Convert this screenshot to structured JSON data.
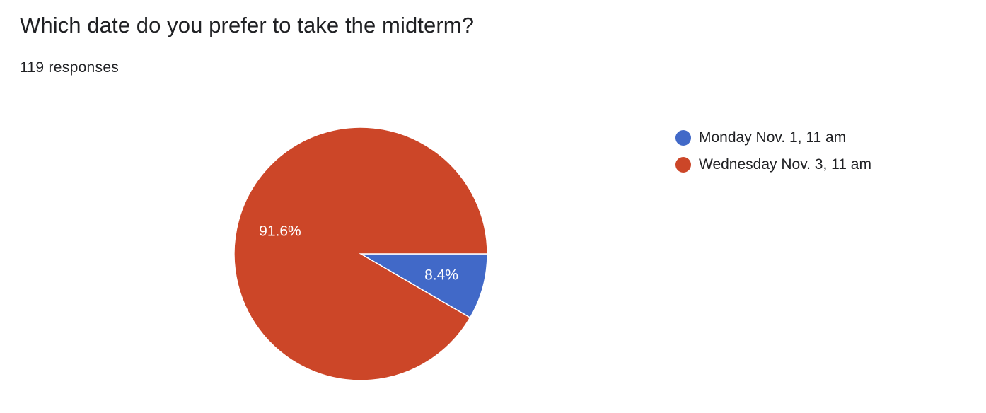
{
  "question": {
    "title": "Which date do you prefer to take the midterm?",
    "response_count": "119 responses"
  },
  "chart_data": {
    "type": "pie",
    "slices": [
      {
        "label": "Monday Nov. 1, 11 am",
        "value": 8.4,
        "display": "8.4%",
        "color": "#4169c8"
      },
      {
        "label": "Wednesday Nov. 3, 11 am",
        "value": 91.6,
        "display": "91.6%",
        "color": "#cc4628"
      }
    ],
    "legend": {
      "placement": "right",
      "entries": [
        "Monday Nov. 1, 11 am",
        "Wednesday Nov. 3, 11 am"
      ]
    }
  }
}
